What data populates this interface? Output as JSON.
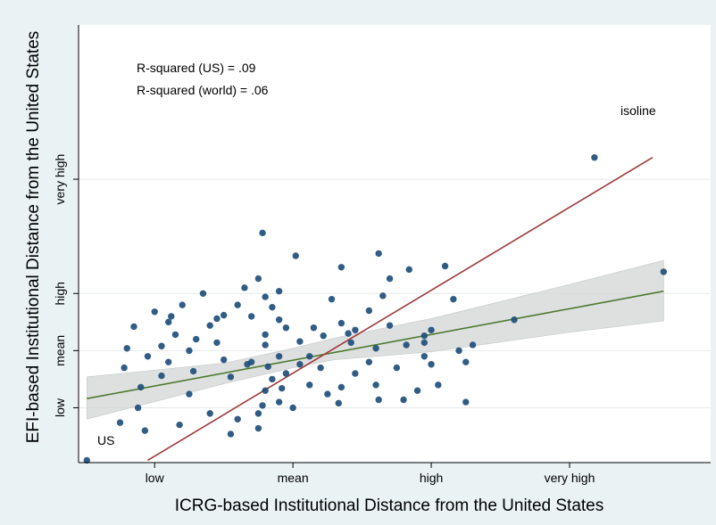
{
  "chart_data": {
    "type": "scatter",
    "title": "",
    "xlabel": "ICRG-based Institutional Distance from the United States",
    "ylabel": "EFI-based Institutional Distance from the United States",
    "xlim": [
      -1.55,
      3.02
    ],
    "ylim": [
      -0.98,
      2.85
    ],
    "x_ticks": [
      {
        "value": -1,
        "label": "low"
      },
      {
        "value": 0,
        "label": "mean"
      },
      {
        "value": 1,
        "label": "high"
      },
      {
        "value": 2,
        "label": "very high"
      }
    ],
    "y_ticks": [
      {
        "value": -0.5,
        "label": "low"
      },
      {
        "value": 0,
        "label": "mean"
      },
      {
        "value": 0.5,
        "label": "high"
      },
      {
        "value": 1.5,
        "label": "very high"
      }
    ],
    "grid": "horizontal",
    "annotations": [
      {
        "text": "R-squared (US) = .09"
      },
      {
        "text": "R-squared (world) = .06"
      },
      {
        "text": "isoline"
      },
      {
        "text": "US"
      }
    ],
    "fit_line": {
      "x": [
        -1.49,
        2.68
      ],
      "y": [
        -0.42,
        0.52
      ]
    },
    "confidence_band": {
      "x": [
        -1.49,
        -0.5,
        0.0,
        0.3,
        1.0,
        2.0,
        2.68
      ],
      "lower": [
        -0.6,
        -0.29,
        -0.15,
        -0.08,
        -0.01,
        0.16,
        0.26
      ],
      "upper": [
        -0.23,
        -0.11,
        0.02,
        0.11,
        0.28,
        0.58,
        0.79
      ]
    },
    "isoline": {
      "x": [
        -1.05,
        2.6
      ],
      "y": [
        -0.96,
        1.69
      ]
    },
    "points": [
      {
        "x": -1.49,
        "y": -0.96,
        "label": "US"
      },
      {
        "x": 2.18,
        "y": 1.69
      },
      {
        "x": 2.68,
        "y": 0.69
      },
      {
        "x": 1.1,
        "y": 0.74
      },
      {
        "x": 1.16,
        "y": 0.45
      },
      {
        "x": 1.6,
        "y": 0.27
      },
      {
        "x": -0.22,
        "y": 1.03
      },
      {
        "x": 0.02,
        "y": 0.83
      },
      {
        "x": 0.35,
        "y": 0.73
      },
      {
        "x": 0.62,
        "y": 0.85
      },
      {
        "x": 0.7,
        "y": 0.63
      },
      {
        "x": 0.84,
        "y": 0.71
      },
      {
        "x": -0.3,
        "y": 0.3
      },
      {
        "x": -0.2,
        "y": 0.14
      },
      {
        "x": -0.1,
        "y": 0.52
      },
      {
        "x": 0.15,
        "y": 0.2
      },
      {
        "x": 0.55,
        "y": 0.35
      },
      {
        "x": 0.65,
        "y": 0.48
      },
      {
        "x": 0.82,
        "y": 0.05
      },
      {
        "x": 0.95,
        "y": -0.05
      },
      {
        "x": 1.0,
        "y": -0.12
      },
      {
        "x": 0.35,
        "y": 0.24
      },
      {
        "x": 0.4,
        "y": 0.15
      },
      {
        "x": 0.6,
        "y": 0.02
      },
      {
        "x": -1.07,
        "y": -0.7
      },
      {
        "x": -1.12,
        "y": -0.5
      },
      {
        "x": -1.25,
        "y": -0.63
      },
      {
        "x": -0.9,
        "y": 0.25
      },
      {
        "x": -1.0,
        "y": 0.34
      },
      {
        "x": -0.95,
        "y": 0.04
      },
      {
        "x": -0.85,
        "y": 0.14
      },
      {
        "x": -0.7,
        "y": 0.1
      },
      {
        "x": -0.75,
        "y": 0.0
      },
      {
        "x": -0.9,
        "y": -0.1
      },
      {
        "x": -1.1,
        "y": -0.32
      },
      {
        "x": -0.6,
        "y": 0.22
      },
      {
        "x": -0.55,
        "y": 0.07
      },
      {
        "x": -0.5,
        "y": -0.08
      },
      {
        "x": -0.45,
        "y": -0.23
      },
      {
        "x": -0.3,
        "y": -0.1
      },
      {
        "x": -0.2,
        "y": 0.05
      },
      {
        "x": -0.1,
        "y": -0.05
      },
      {
        "x": 0.05,
        "y": -0.12
      },
      {
        "x": 0.12,
        "y": -0.3
      },
      {
        "x": 0.25,
        "y": -0.38
      },
      {
        "x": 0.33,
        "y": -0.46
      },
      {
        "x": 0.45,
        "y": -0.2
      },
      {
        "x": 0.55,
        "y": -0.1
      },
      {
        "x": -0.2,
        "y": -0.35
      },
      {
        "x": -0.1,
        "y": -0.45
      },
      {
        "x": 0.0,
        "y": -0.5
      },
      {
        "x": -0.25,
        "y": -0.55
      },
      {
        "x": -0.4,
        "y": -0.6
      },
      {
        "x": -0.6,
        "y": -0.55
      },
      {
        "x": -0.82,
        "y": -0.65
      },
      {
        "x": -0.75,
        "y": -0.38
      },
      {
        "x": -0.95,
        "y": -0.22
      },
      {
        "x": 1.05,
        "y": -0.3
      },
      {
        "x": 1.25,
        "y": -0.1
      },
      {
        "x": 1.2,
        "y": 0.0
      },
      {
        "x": 1.0,
        "y": 0.18
      },
      {
        "x": 0.7,
        "y": 0.22
      },
      {
        "x": -0.35,
        "y": 0.55
      },
      {
        "x": -0.4,
        "y": 0.4
      },
      {
        "x": -0.65,
        "y": 0.5
      },
      {
        "x": -0.55,
        "y": 0.28
      },
      {
        "x": -0.15,
        "y": 0.38
      },
      {
        "x": 0.28,
        "y": 0.45
      },
      {
        "x": 0.45,
        "y": 0.18
      },
      {
        "x": 0.05,
        "y": 0.08
      },
      {
        "x": -0.1,
        "y": 0.27
      },
      {
        "x": -0.33,
        "y": -0.12
      },
      {
        "x": -0.15,
        "y": -0.25
      },
      {
        "x": 0.2,
        "y": -0.15
      },
      {
        "x": 0.75,
        "y": -0.15
      },
      {
        "x": 0.8,
        "y": -0.43
      },
      {
        "x": 0.9,
        "y": -0.35
      },
      {
        "x": 1.25,
        "y": -0.45
      },
      {
        "x": 0.6,
        "y": -0.3
      },
      {
        "x": 0.35,
        "y": -0.32
      },
      {
        "x": -0.05,
        "y": -0.2
      },
      {
        "x": -0.18,
        "y": -0.14
      },
      {
        "x": -0.25,
        "y": -0.68
      },
      {
        "x": -0.45,
        "y": -0.73
      },
      {
        "x": -0.72,
        "y": -0.18
      },
      {
        "x": -1.05,
        "y": -0.05
      },
      {
        "x": -1.2,
        "y": 0.02
      },
      {
        "x": -1.15,
        "y": 0.21
      },
      {
        "x": -1.22,
        "y": -0.15
      },
      {
        "x": 0.95,
        "y": 0.07
      },
      {
        "x": 1.3,
        "y": 0.05
      },
      {
        "x": 0.42,
        "y": 0.07
      },
      {
        "x": 0.22,
        "y": 0.13
      },
      {
        "x": -0.08,
        "y": -0.33
      },
      {
        "x": 0.12,
        "y": -0.05
      },
      {
        "x": -0.5,
        "y": 0.31
      },
      {
        "x": -0.8,
        "y": 0.4
      },
      {
        "x": -0.88,
        "y": 0.3
      },
      {
        "x": 0.62,
        "y": -0.43
      },
      {
        "x": -0.22,
        "y": -0.48
      },
      {
        "x": 0.95,
        "y": 0.13
      },
      {
        "x": -0.25,
        "y": 0.63
      },
      {
        "x": -0.2,
        "y": 0.47
      },
      {
        "x": -0.05,
        "y": 0.2
      }
    ]
  }
}
